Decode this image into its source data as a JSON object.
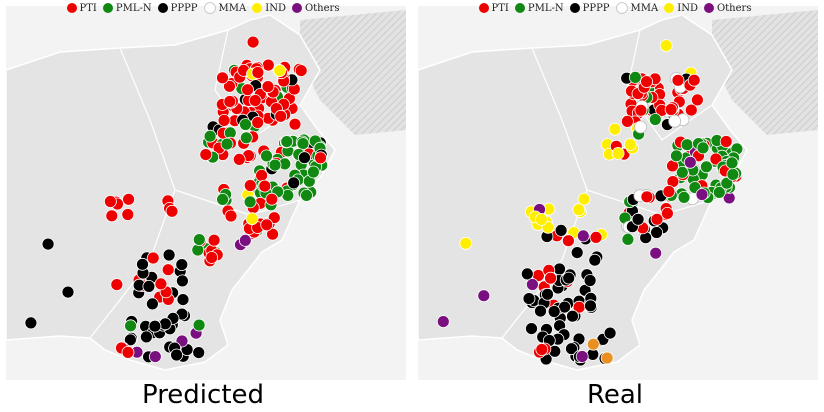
{
  "legend": [
    {
      "label": "PTI",
      "color": "#ee0000"
    },
    {
      "label": "PML-N",
      "color": "#118811"
    },
    {
      "label": "PPPP",
      "color": "#000000"
    },
    {
      "label": "MMA",
      "color": "#ffffff"
    },
    {
      "label": "IND",
      "color": "#ffee00"
    },
    {
      "label": "Others",
      "color": "#7a1080"
    }
  ],
  "panels": [
    {
      "caption": "Predicted"
    },
    {
      "caption": "Real"
    }
  ],
  "colors": {
    "land": "#e4e4e4",
    "outside": "#f3f3f3",
    "hatch": "#cccccc",
    "border": "#ffffff",
    "marker_stroke": "#ffffff",
    "mma_stroke": "#bbbbbb",
    "ppp_orange": "#e89020"
  }
}
